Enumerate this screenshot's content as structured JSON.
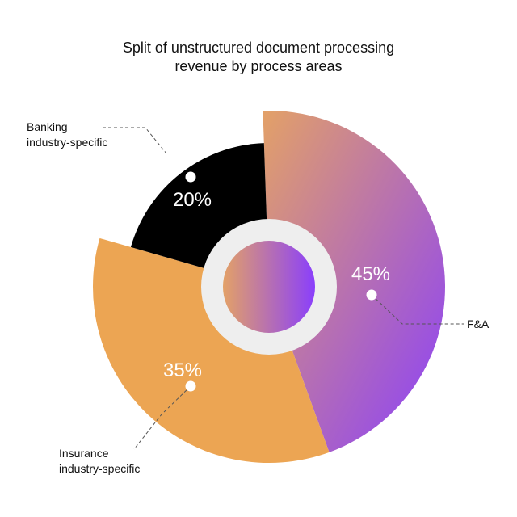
{
  "chart_data": {
    "type": "pie",
    "title_lines": [
      "Split of unstructured document processing",
      "revenue by process areas"
    ],
    "slices": [
      {
        "name": "F&A",
        "label_lines": [
          "F&A"
        ],
        "value": 45,
        "value_label": "45%",
        "color_start": "#e3a167",
        "color_end": "#8a3ffc"
      },
      {
        "name": "Insurance industry-specific",
        "label_lines": [
          "Insurance",
          "industry-specific"
        ],
        "value": 35,
        "value_label": "35%",
        "color": "#eca553"
      },
      {
        "name": "Banking industry-specific",
        "label_lines": [
          "Banking",
          "industry-specific"
        ],
        "value": 20,
        "value_label": "20%",
        "color": "#000000"
      }
    ],
    "center_ring_color": "#eeeeee"
  }
}
